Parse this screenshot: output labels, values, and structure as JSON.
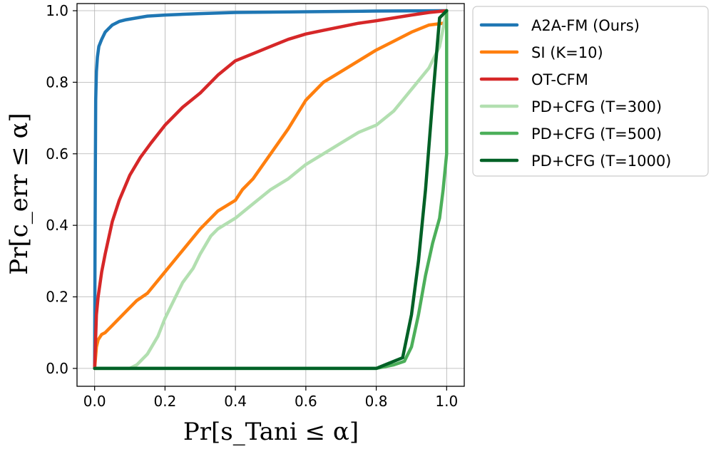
{
  "chart_data": {
    "type": "line",
    "xlabel": "Pr[s_Tani ≤ α]",
    "ylabel": "Pr[c_err ≤ α]",
    "xlim": [
      -0.05,
      1.05
    ],
    "ylim": [
      -0.05,
      1.02
    ],
    "xticks": [
      "0.0",
      "0.2",
      "0.4",
      "0.6",
      "0.8",
      "1.0"
    ],
    "yticks": [
      "0.0",
      "0.2",
      "0.4",
      "0.6",
      "0.8",
      "1.0"
    ],
    "grid": true,
    "legend_position": "outside-right",
    "series": [
      {
        "name": "A2A-FM (Ours)",
        "color": "#1f77b4",
        "x": [
          0,
          0.001,
          0.002,
          0.003,
          0.005,
          0.008,
          0.012,
          0.02,
          0.03,
          0.04,
          0.05,
          0.07,
          0.09,
          0.12,
          0.15,
          0.2,
          0.3,
          0.4,
          0.6,
          0.8,
          1.0
        ],
        "y": [
          0,
          0.3,
          0.55,
          0.75,
          0.83,
          0.87,
          0.9,
          0.92,
          0.94,
          0.95,
          0.96,
          0.97,
          0.975,
          0.98,
          0.985,
          0.988,
          0.992,
          0.995,
          0.997,
          0.999,
          1.0
        ]
      },
      {
        "name": "SI (K=10)",
        "color": "#ff7f0e",
        "x": [
          0,
          0.005,
          0.01,
          0.02,
          0.03,
          0.05,
          0.08,
          0.1,
          0.12,
          0.15,
          0.2,
          0.25,
          0.3,
          0.35,
          0.4,
          0.42,
          0.45,
          0.5,
          0.55,
          0.6,
          0.62,
          0.65,
          0.7,
          0.75,
          0.8,
          0.85,
          0.9,
          0.95,
          0.99
        ],
        "y": [
          0,
          0.06,
          0.08,
          0.095,
          0.1,
          0.12,
          0.15,
          0.17,
          0.19,
          0.21,
          0.27,
          0.33,
          0.39,
          0.44,
          0.47,
          0.5,
          0.53,
          0.6,
          0.67,
          0.75,
          0.77,
          0.8,
          0.83,
          0.86,
          0.89,
          0.915,
          0.94,
          0.96,
          0.965
        ]
      },
      {
        "name": "OT-CFM",
        "color": "#d62728",
        "x": [
          0,
          0.005,
          0.01,
          0.02,
          0.03,
          0.05,
          0.07,
          0.1,
          0.13,
          0.16,
          0.2,
          0.25,
          0.3,
          0.35,
          0.4,
          0.45,
          0.5,
          0.55,
          0.6,
          0.65,
          0.7,
          0.75,
          0.8,
          0.85,
          0.9,
          0.95,
          1.0
        ],
        "y": [
          0,
          0.15,
          0.2,
          0.27,
          0.32,
          0.41,
          0.47,
          0.54,
          0.59,
          0.63,
          0.68,
          0.73,
          0.77,
          0.82,
          0.86,
          0.88,
          0.9,
          0.92,
          0.935,
          0.945,
          0.955,
          0.965,
          0.972,
          0.98,
          0.988,
          0.995,
          1.0
        ]
      },
      {
        "name": "PD+CFG (T=300)",
        "color": "#b2dfb0",
        "x": [
          0,
          0.1,
          0.12,
          0.15,
          0.18,
          0.2,
          0.23,
          0.25,
          0.28,
          0.3,
          0.33,
          0.35,
          0.4,
          0.45,
          0.5,
          0.55,
          0.6,
          0.65,
          0.7,
          0.75,
          0.8,
          0.85,
          0.9,
          0.95,
          0.98,
          1.0
        ],
        "y": [
          0,
          0,
          0.01,
          0.04,
          0.09,
          0.14,
          0.2,
          0.24,
          0.28,
          0.32,
          0.37,
          0.39,
          0.42,
          0.46,
          0.5,
          0.53,
          0.57,
          0.6,
          0.63,
          0.66,
          0.68,
          0.72,
          0.78,
          0.84,
          0.9,
          1.0
        ]
      },
      {
        "name": "PD+CFG (T=500)",
        "color": "#4caf5a",
        "x": [
          0,
          0.8,
          0.85,
          0.88,
          0.9,
          0.92,
          0.94,
          0.96,
          0.98,
          0.99,
          1.0,
          1.0
        ],
        "y": [
          0,
          0,
          0.01,
          0.02,
          0.06,
          0.15,
          0.26,
          0.35,
          0.42,
          0.5,
          0.6,
          1.0
        ]
      },
      {
        "name": "PD+CFG (T=1000)",
        "color": "#006126",
        "x": [
          0,
          0.8,
          0.875,
          0.9,
          0.92,
          0.94,
          0.96,
          0.98,
          1.0
        ],
        "y": [
          0,
          0,
          0.03,
          0.15,
          0.3,
          0.5,
          0.75,
          0.98,
          1.0
        ]
      }
    ]
  }
}
